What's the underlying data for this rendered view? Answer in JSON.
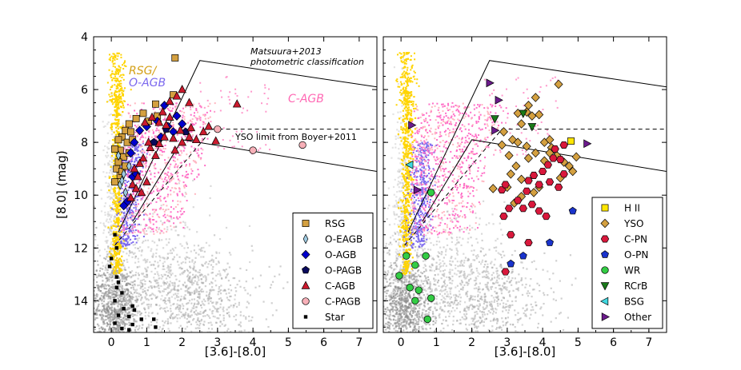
{
  "chart_data": [
    {
      "type": "scatter",
      "xlabel": "[3.6]-[8.0]",
      "ylabel": "[8.0] (mag)",
      "xlim": [
        -0.5,
        7.5
      ],
      "ylim": [
        15.2,
        4.0
      ],
      "y_inverted": true,
      "xticks": [
        0,
        1,
        2,
        3,
        4,
        5,
        6,
        7
      ],
      "yticks": [
        4,
        6,
        8,
        10,
        12,
        14
      ],
      "legend": "bottom-right",
      "annotations": [
        {
          "text": "Matsuura+2013",
          "x": 4.9,
          "y": 4.55,
          "italic": true
        },
        {
          "text": "photometric classification",
          "x": 4.9,
          "y": 4.95,
          "italic": true
        },
        {
          "text": "YSO limit from Boyer+2011",
          "x": 4.35,
          "y": 7.75,
          "italic": false
        }
      ],
      "region_labels": [
        {
          "text": "RSG/",
          "x": 0.75,
          "y": 5.25,
          "color": "#d4a017"
        },
        {
          "text": "O-AGB",
          "x": 0.95,
          "y": 5.75,
          "color": "#7b68ee"
        },
        {
          "text": "C-AGB",
          "x": 5.4,
          "y": 6.85,
          "color": "#ff69b4"
        }
      ],
      "series": [
        {
          "name": "RSG",
          "marker": "square",
          "color": "#d4a040",
          "points": [
            [
              1.8,
              4.8
            ],
            [
              1.75,
              6.2
            ],
            [
              1.25,
              6.55
            ],
            [
              1.3,
              7.0
            ],
            [
              1.05,
              7.2
            ],
            [
              0.9,
              6.9
            ],
            [
              0.7,
              7.1
            ],
            [
              0.5,
              7.3
            ],
            [
              0.4,
              7.55
            ],
            [
              0.55,
              7.6
            ],
            [
              0.3,
              7.8
            ],
            [
              0.45,
              8.0
            ],
            [
              0.25,
              8.3
            ],
            [
              0.35,
              8.55
            ],
            [
              0.2,
              8.75
            ],
            [
              0.15,
              9.0
            ],
            [
              0.25,
              9.25
            ],
            [
              0.1,
              9.5
            ],
            [
              0.3,
              9.1
            ],
            [
              0.4,
              8.9
            ],
            [
              0.1,
              8.25
            ],
            [
              0.5,
              8.4
            ],
            [
              0.6,
              7.9
            ],
            [
              0.2,
              7.9
            ]
          ]
        },
        {
          "name": "O-EAGB",
          "marker": "thin-diamond",
          "color": "#9ecae1",
          "points": [
            [
              0.5,
              8.9
            ],
            [
              0.35,
              9.2
            ],
            [
              0.25,
              9.6
            ],
            [
              0.3,
              9.45
            ],
            [
              0.2,
              8.5
            ],
            [
              0.4,
              9.9
            ]
          ]
        },
        {
          "name": "O-AGB",
          "marker": "diamond",
          "color": "#0000cc",
          "points": [
            [
              1.5,
              6.6
            ],
            [
              1.3,
              7.2
            ],
            [
              1.0,
              7.4
            ],
            [
              0.8,
              7.55
            ],
            [
              0.65,
              8.0
            ],
            [
              0.55,
              8.4
            ],
            [
              0.6,
              9.3
            ],
            [
              0.7,
              9.2
            ],
            [
              2.0,
              7.3
            ],
            [
              1.85,
              7.0
            ],
            [
              1.75,
              7.6
            ],
            [
              1.6,
              7.4
            ],
            [
              1.4,
              7.8
            ],
            [
              0.45,
              10.25
            ],
            [
              0.35,
              10.4
            ]
          ]
        },
        {
          "name": "O-PAGB",
          "marker": "pentagon",
          "color": "#0a0a5c",
          "points": [
            [
              1.55,
              7.5
            ],
            [
              2.1,
              7.6
            ],
            [
              1.2,
              8.0
            ]
          ]
        },
        {
          "name": "C-AGB",
          "marker": "triangle",
          "color": "#cc1a2e",
          "points": [
            [
              2.0,
              6.0
            ],
            [
              1.85,
              6.25
            ],
            [
              1.65,
              6.45
            ],
            [
              2.2,
              6.5
            ],
            [
              1.45,
              6.85
            ],
            [
              1.35,
              7.25
            ],
            [
              1.15,
              7.05
            ],
            [
              0.95,
              7.25
            ],
            [
              1.65,
              7.05
            ],
            [
              1.55,
              7.35
            ],
            [
              1.95,
              7.55
            ],
            [
              2.25,
              7.45
            ],
            [
              2.6,
              7.6
            ],
            [
              2.2,
              7.8
            ],
            [
              2.0,
              8.0
            ],
            [
              1.75,
              7.85
            ],
            [
              1.5,
              7.8
            ],
            [
              1.35,
              8.05
            ],
            [
              1.1,
              8.2
            ],
            [
              1.25,
              8.5
            ],
            [
              0.9,
              8.6
            ],
            [
              0.8,
              8.8
            ],
            [
              0.65,
              9.0
            ],
            [
              0.75,
              9.3
            ],
            [
              0.6,
              9.6
            ],
            [
              0.7,
              9.75
            ],
            [
              0.55,
              10.1
            ],
            [
              1.05,
              8.0
            ],
            [
              2.4,
              7.9
            ],
            [
              2.75,
              7.4
            ],
            [
              3.55,
              6.55
            ],
            [
              1.8,
              8.3
            ],
            [
              1.0,
              9.5
            ],
            [
              0.85,
              9.9
            ],
            [
              2.95,
              7.95
            ]
          ]
        },
        {
          "name": "C-PAGB",
          "marker": "circle",
          "color": "#f7b0b8",
          "points": [
            [
              3.0,
              7.5
            ],
            [
              4.0,
              8.3
            ],
            [
              5.4,
              8.1
            ]
          ]
        },
        {
          "name": "Star",
          "marker": "small-square",
          "color": "#000000",
          "points": [
            [
              0.1,
              11.5
            ],
            [
              0.15,
              12.0
            ],
            [
              0.0,
              12.4
            ],
            [
              -0.05,
              12.7
            ],
            [
              0.15,
              13.1
            ],
            [
              0.2,
              13.3
            ],
            [
              0.15,
              13.5
            ],
            [
              0.3,
              13.7
            ],
            [
              0.1,
              14.0
            ],
            [
              0.35,
              14.3
            ],
            [
              0.6,
              14.2
            ],
            [
              0.65,
              14.35
            ],
            [
              0.5,
              14.6
            ],
            [
              0.2,
              14.55
            ],
            [
              0.6,
              14.9
            ],
            [
              0.85,
              14.7
            ],
            [
              1.2,
              14.7
            ],
            [
              1.25,
              15.0
            ],
            [
              0.3,
              15.05
            ],
            [
              0.5,
              15.1
            ],
            [
              0.1,
              14.85
            ]
          ]
        }
      ],
      "lines": [
        {
          "style": "solid",
          "x": [
            0.2,
            2.5,
            7.5
          ],
          "y": [
            11.4,
            4.9,
            5.9
          ]
        },
        {
          "style": "solid",
          "x": [
            0.6,
            2.0,
            7.5
          ],
          "y": [
            11.0,
            7.9,
            9.1
          ]
        },
        {
          "style": "dashed",
          "x": [
            0.1,
            2.85,
            7.5
          ],
          "y": [
            11.9,
            7.5,
            7.5
          ]
        }
      ]
    },
    {
      "type": "scatter",
      "xlabel": "[3.6]-[8.0]",
      "ylabel": "",
      "xlim": [
        -0.5,
        7.5
      ],
      "ylim": [
        15.2,
        4.0
      ],
      "y_inverted": true,
      "xticks": [
        0,
        1,
        2,
        3,
        4,
        5,
        6,
        7
      ],
      "yticks": [
        4,
        6,
        8,
        10,
        12,
        14
      ],
      "legend": "bottom-right",
      "series": [
        {
          "name": "H II",
          "marker": "square",
          "color": "#ffe600",
          "points": [
            [
              4.8,
              7.95
            ]
          ]
        },
        {
          "name": "YSO",
          "marker": "diamond",
          "color": "#d4a040",
          "points": [
            [
              4.45,
              5.8
            ],
            [
              3.8,
              6.3
            ],
            [
              3.6,
              6.6
            ],
            [
              3.3,
              6.9
            ],
            [
              3.55,
              6.85
            ],
            [
              3.7,
              7.0
            ],
            [
              3.9,
              6.95
            ],
            [
              3.4,
              7.3
            ],
            [
              2.9,
              7.6
            ],
            [
              3.15,
              7.9
            ],
            [
              3.3,
              8.0
            ],
            [
              3.55,
              8.15
            ],
            [
              3.8,
              8.4
            ],
            [
              3.6,
              8.6
            ],
            [
              3.25,
              8.9
            ],
            [
              3.1,
              9.2
            ],
            [
              3.4,
              9.4
            ],
            [
              3.0,
              9.7
            ],
            [
              2.6,
              9.75
            ],
            [
              3.4,
              10.05
            ],
            [
              3.75,
              9.9
            ],
            [
              4.05,
              8.7
            ],
            [
              4.25,
              8.2
            ],
            [
              4.4,
              8.5
            ],
            [
              4.05,
              8.0
            ],
            [
              4.6,
              8.75
            ],
            [
              4.75,
              8.9
            ],
            [
              4.95,
              8.55
            ],
            [
              4.85,
              9.1
            ],
            [
              4.5,
              9.35
            ],
            [
              4.2,
              8.4
            ],
            [
              3.05,
              8.5
            ],
            [
              2.85,
              8.1
            ],
            [
              4.2,
              7.9
            ],
            [
              3.9,
              9.7
            ],
            [
              3.2,
              10.3
            ]
          ]
        },
        {
          "name": "C-PN",
          "marker": "hexagon",
          "color": "#d9183c",
          "points": [
            [
              4.6,
              8.1
            ],
            [
              4.35,
              8.25
            ],
            [
              4.3,
              8.6
            ],
            [
              4.15,
              8.85
            ],
            [
              4.0,
              9.1
            ],
            [
              3.75,
              9.25
            ],
            [
              3.6,
              9.45
            ],
            [
              3.9,
              9.6
            ],
            [
              4.2,
              9.5
            ],
            [
              4.45,
              9.7
            ],
            [
              4.6,
              9.2
            ],
            [
              3.55,
              9.85
            ],
            [
              3.3,
              10.2
            ],
            [
              3.05,
              10.5
            ],
            [
              2.9,
              10.8
            ],
            [
              3.45,
              10.5
            ],
            [
              3.7,
              10.35
            ],
            [
              3.9,
              10.6
            ],
            [
              4.1,
              10.8
            ],
            [
              3.1,
              11.5
            ],
            [
              3.6,
              11.8
            ],
            [
              2.95,
              12.9
            ],
            [
              2.85,
              9.8
            ],
            [
              2.95,
              9.6
            ],
            [
              4.5,
              8.65
            ]
          ]
        },
        {
          "name": "O-PN",
          "marker": "pentagon",
          "color": "#1a33cc",
          "points": [
            [
              4.85,
              10.6
            ],
            [
              4.2,
              11.8
            ],
            [
              3.45,
              12.3
            ],
            [
              3.1,
              12.6
            ]
          ]
        },
        {
          "name": "WR",
          "marker": "circle",
          "color": "#33cc44",
          "points": [
            [
              0.15,
              12.3
            ],
            [
              -0.05,
              13.05
            ],
            [
              0.4,
              12.65
            ],
            [
              0.7,
              12.3
            ],
            [
              0.25,
              13.5
            ],
            [
              0.5,
              13.6
            ],
            [
              0.85,
              13.9
            ],
            [
              0.4,
              14.0
            ],
            [
              0.75,
              14.7
            ],
            [
              0.85,
              9.9
            ]
          ]
        },
        {
          "name": "RCrB",
          "marker": "triangle-down",
          "color": "#1a7a1a",
          "points": [
            [
              2.65,
              7.1
            ],
            [
              3.45,
              6.9
            ],
            [
              3.7,
              7.4
            ]
          ]
        },
        {
          "name": "BSG",
          "marker": "triangle-left",
          "color": "#40d8e0",
          "points": [
            [
              0.25,
              8.85
            ]
          ]
        },
        {
          "name": "Other",
          "marker": "triangle-right",
          "color": "#6b1a8c",
          "points": [
            [
              2.5,
              5.75
            ],
            [
              2.75,
              6.4
            ],
            [
              0.3,
              7.35
            ],
            [
              0.45,
              9.8
            ],
            [
              5.25,
              8.05
            ],
            [
              2.65,
              7.55
            ]
          ]
        }
      ],
      "lines": [
        {
          "style": "solid",
          "x": [
            0.2,
            2.5,
            7.5
          ],
          "y": [
            11.4,
            4.9,
            5.9
          ]
        },
        {
          "style": "solid",
          "x": [
            0.6,
            2.0,
            7.5
          ],
          "y": [
            11.0,
            7.9,
            9.1
          ]
        },
        {
          "style": "dashed",
          "x": [
            0.1,
            2.85,
            7.5
          ],
          "y": [
            11.9,
            7.5,
            7.5
          ]
        }
      ]
    }
  ]
}
